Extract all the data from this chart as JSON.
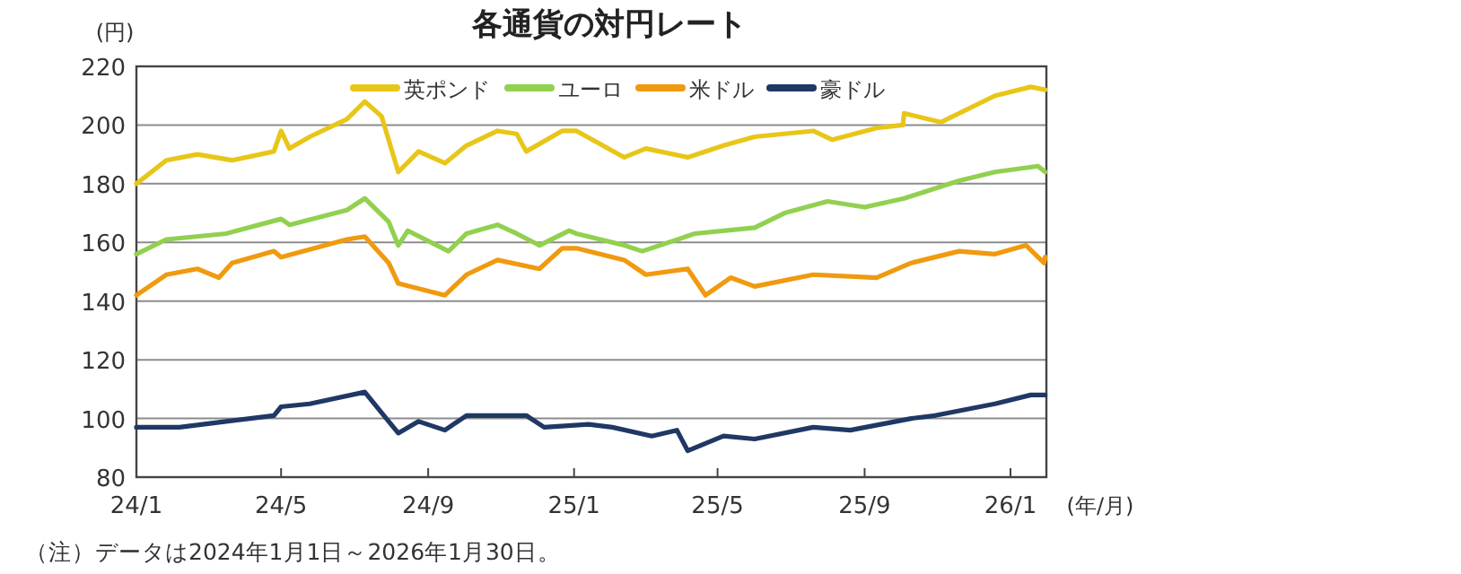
{
  "chart_data": {
    "type": "line",
    "title": "各通貨の対円レート",
    "ylabel": "(円)",
    "xlabel": "(年/月)",
    "xlim": [
      "2024-01-01",
      "2026-01-31"
    ],
    "xticks": [
      {
        "value": "2024-01-01",
        "label": "24/1"
      },
      {
        "value": "2024-05-01",
        "label": "24/5"
      },
      {
        "value": "2024-09-01",
        "label": "24/9"
      },
      {
        "value": "2025-01-01",
        "label": "25/1"
      },
      {
        "value": "2025-05-01",
        "label": "25/5"
      },
      {
        "value": "2025-09-01",
        "label": "25/9"
      },
      {
        "value": "2026-01-01",
        "label": "26/1"
      }
    ],
    "ylim": [
      80,
      220
    ],
    "yticks": [
      80,
      100,
      120,
      140,
      160,
      180,
      200,
      220
    ],
    "grid": "y",
    "legend": "top",
    "line_style": "solid",
    "marker": "none",
    "series": [
      {
        "name": "英ポンド",
        "color": "#e8c619",
        "x": [
          "2024-01-01",
          "2024-01-26",
          "2024-02-21",
          "2024-03-21",
          "2024-04-25",
          "2024-05-01",
          "2024-05-08",
          "2024-05-25",
          "2024-06-25",
          "2024-07-10",
          "2024-07-24",
          "2024-08-07",
          "2024-08-24",
          "2024-09-15",
          "2024-10-03",
          "2024-10-29",
          "2024-11-14",
          "2024-11-22",
          "2024-12-22",
          "2025-01-03",
          "2025-02-12",
          "2025-03-02",
          "2025-04-06",
          "2025-05-06",
          "2025-06-01",
          "2025-07-20",
          "2025-08-05",
          "2025-09-11",
          "2025-10-03",
          "2025-10-04",
          "2025-11-04",
          "2025-12-19",
          "2026-01-18",
          "2026-01-30"
        ],
        "values": [
          180,
          188,
          190,
          188,
          191,
          198,
          192,
          196,
          202,
          208,
          203,
          184,
          191,
          187,
          193,
          198,
          197,
          191,
          198,
          198,
          189,
          192,
          189,
          193,
          196,
          198,
          195,
          199,
          200,
          204,
          201,
          210,
          213,
          212
        ]
      },
      {
        "name": "ユーロ",
        "color": "#92d050",
        "x": [
          "2024-01-01",
          "2024-01-26",
          "2024-03-16",
          "2024-05-01",
          "2024-05-08",
          "2024-06-25",
          "2024-07-10",
          "2024-07-30",
          "2024-08-07",
          "2024-08-15",
          "2024-09-18",
          "2024-10-03",
          "2024-10-29",
          "2024-11-14",
          "2024-12-03",
          "2024-12-28",
          "2025-01-03",
          "2025-02-12",
          "2025-02-27",
          "2025-04-12",
          "2025-06-01",
          "2025-06-26",
          "2025-08-01",
          "2025-09-01",
          "2025-10-04",
          "2025-11-19",
          "2025-12-19",
          "2026-01-24",
          "2026-01-30"
        ],
        "values": [
          156,
          161,
          163,
          168,
          166,
          171,
          175,
          167,
          159,
          164,
          157,
          163,
          166,
          163,
          159,
          164,
          163,
          159,
          157,
          163,
          165,
          170,
          174,
          172,
          175,
          181,
          184,
          186,
          184
        ]
      },
      {
        "name": "米ドル",
        "color": "#f09a0f",
        "x": [
          "2024-01-01",
          "2024-01-26",
          "2024-02-21",
          "2024-03-10",
          "2024-03-21",
          "2024-04-25",
          "2024-05-01",
          "2024-06-25",
          "2024-07-10",
          "2024-07-30",
          "2024-08-07",
          "2024-09-15",
          "2024-10-03",
          "2024-10-29",
          "2024-12-03",
          "2024-12-22",
          "2025-01-03",
          "2025-02-12",
          "2025-03-02",
          "2025-04-06",
          "2025-04-21",
          "2025-05-12",
          "2025-06-01",
          "2025-07-20",
          "2025-09-11",
          "2025-10-10",
          "2025-11-19",
          "2025-12-19",
          "2026-01-14",
          "2026-01-29",
          "2026-01-30"
        ],
        "values": [
          142,
          149,
          151,
          148,
          153,
          157,
          155,
          161,
          162,
          153,
          146,
          142,
          149,
          154,
          151,
          158,
          158,
          154,
          149,
          151,
          142,
          148,
          145,
          149,
          148,
          153,
          157,
          156,
          159,
          153,
          155
        ]
      },
      {
        "name": "豪ドル",
        "color": "#1f3864",
        "x": [
          "2024-01-01",
          "2024-02-06",
          "2024-03-16",
          "2024-04-25",
          "2024-05-01",
          "2024-05-25",
          "2024-07-10",
          "2024-07-24",
          "2024-08-07",
          "2024-08-24",
          "2024-09-15",
          "2024-10-03",
          "2024-11-22",
          "2024-12-07",
          "2025-01-13",
          "2025-02-02",
          "2025-03-07",
          "2025-03-28",
          "2025-04-06",
          "2025-05-06",
          "2025-06-01",
          "2025-07-20",
          "2025-08-20",
          "2025-10-10",
          "2025-10-30",
          "2025-12-19",
          "2026-01-18",
          "2026-01-30"
        ],
        "values": [
          97,
          97,
          99,
          101,
          104,
          105,
          109,
          102,
          95,
          99,
          96,
          101,
          101,
          97,
          98,
          97,
          94,
          96,
          89,
          94,
          93,
          97,
          96,
          100,
          101,
          105,
          108,
          108
        ]
      }
    ],
    "annotations": [
      "（注）データは2024年1月1日～2026年1月30日。"
    ]
  }
}
